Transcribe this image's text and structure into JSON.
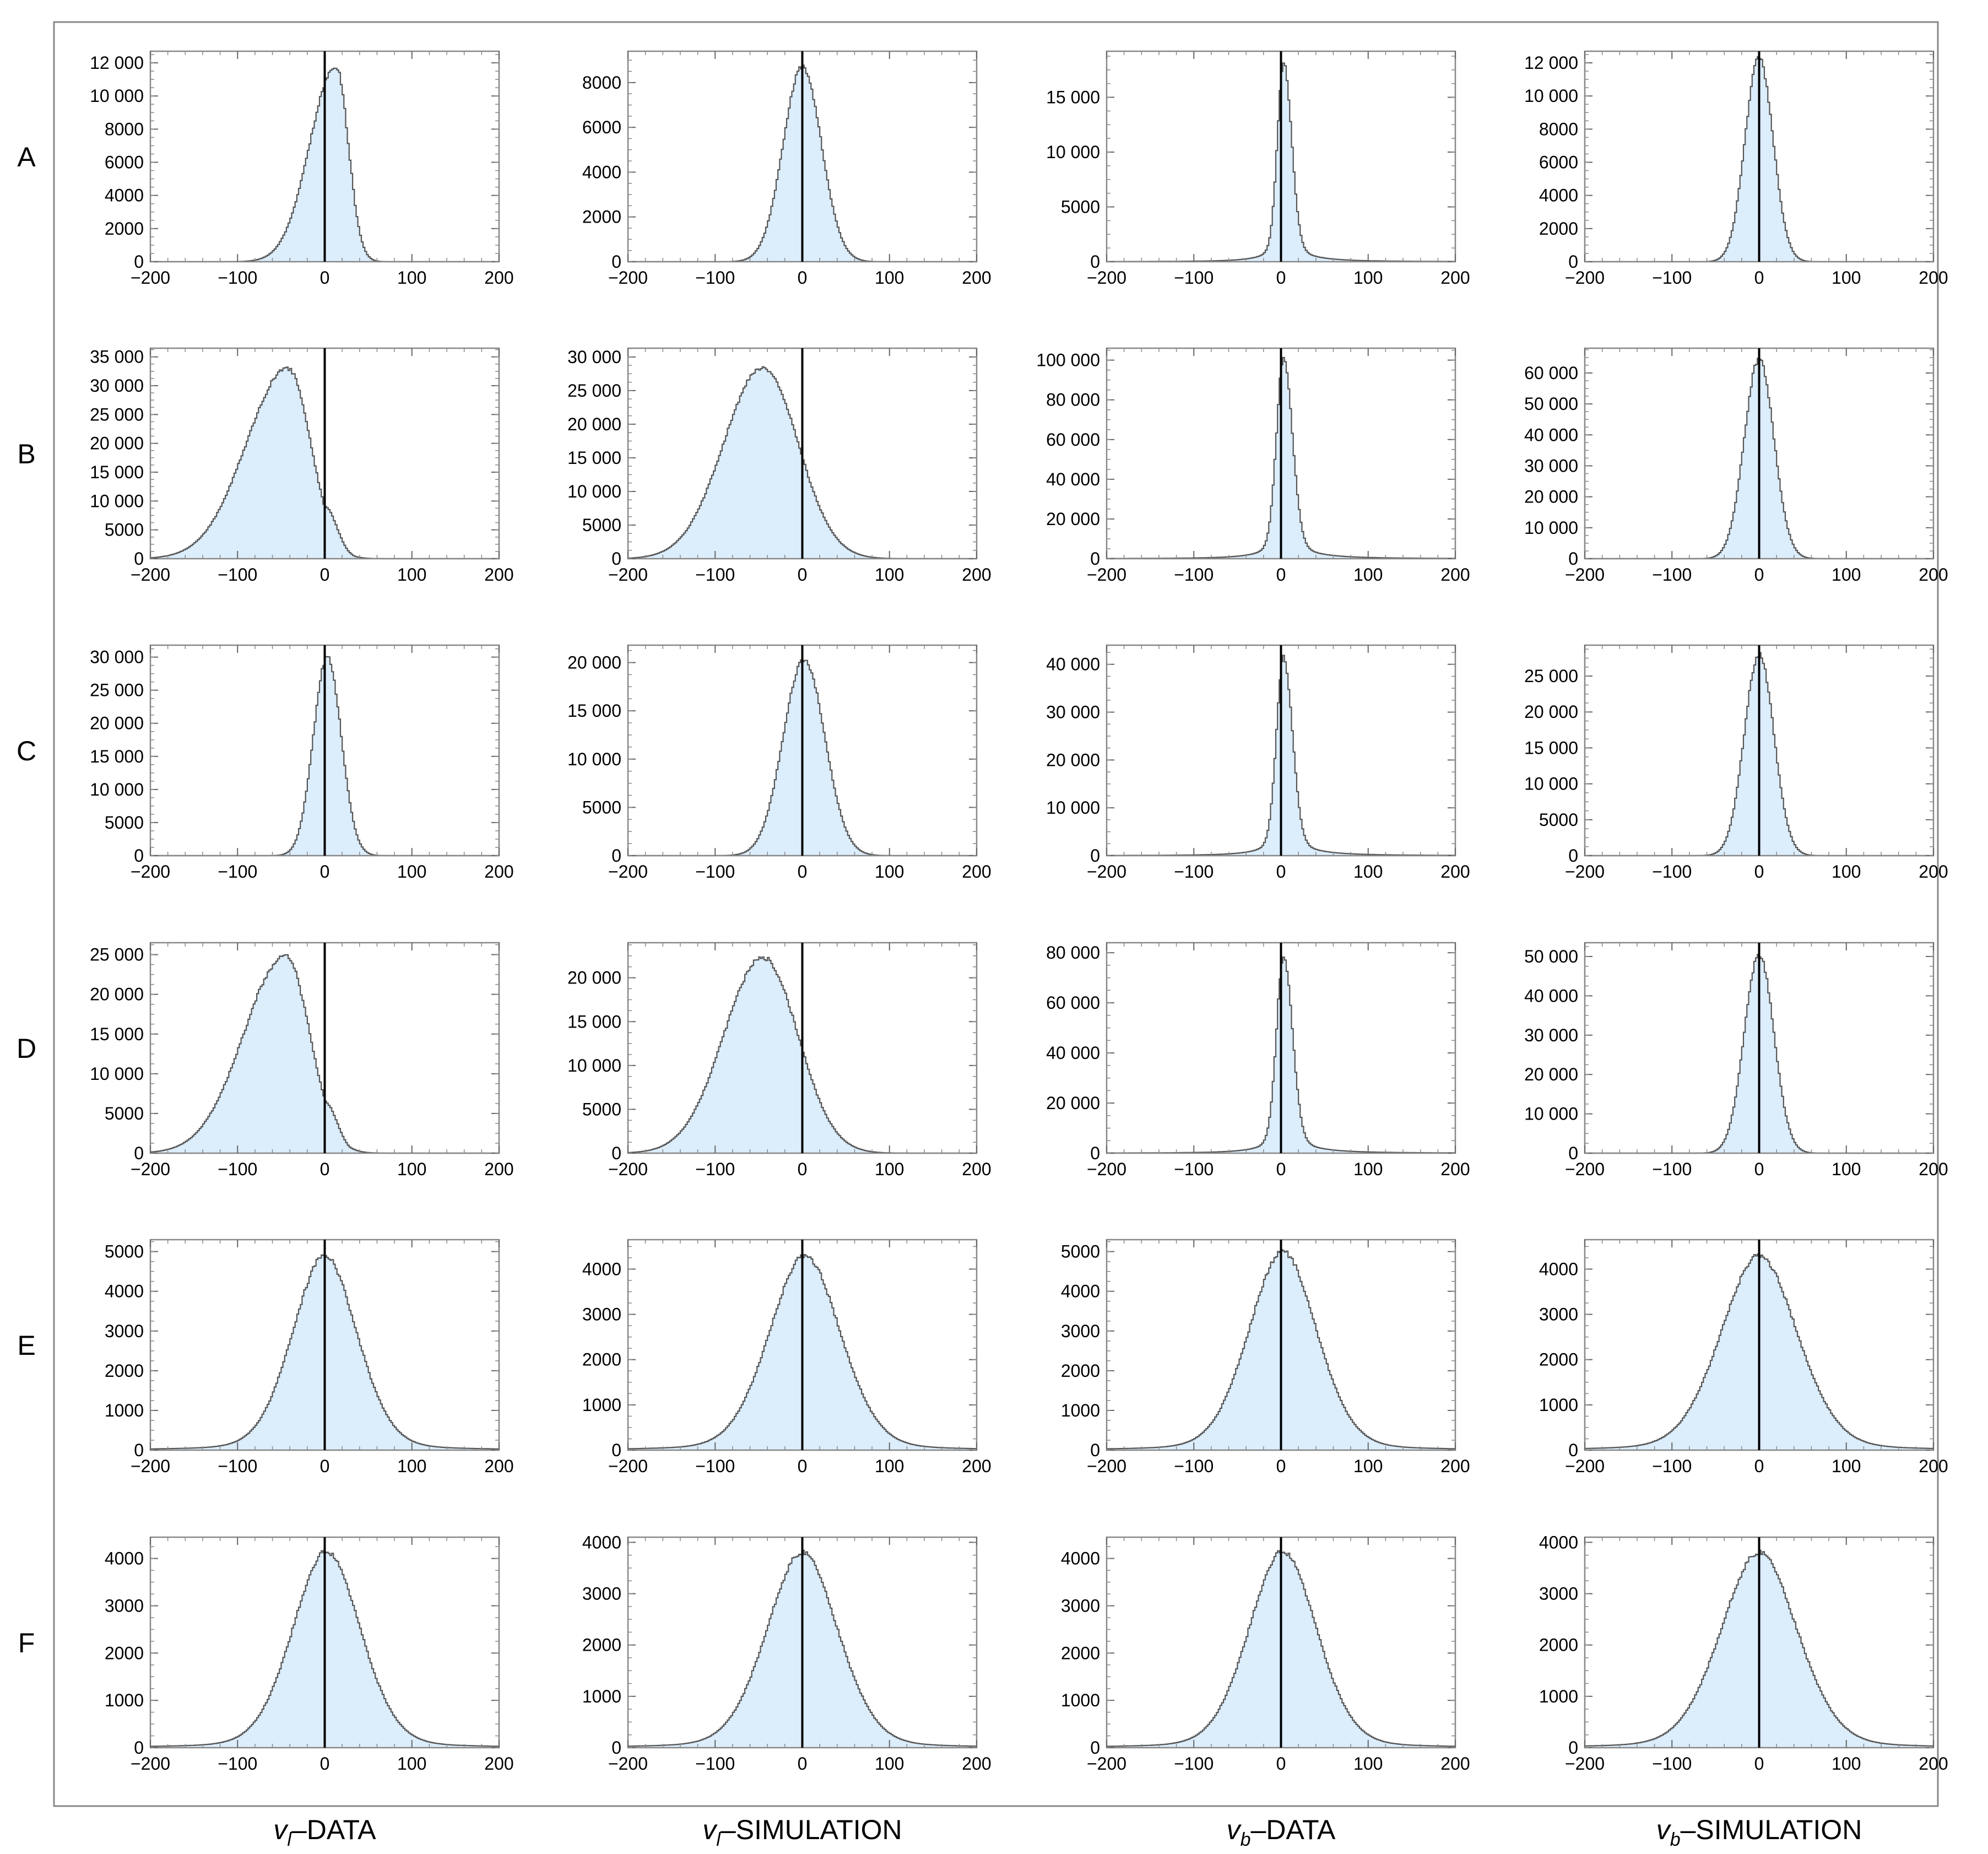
{
  "figure": {
    "row_labels": [
      "A",
      "B",
      "C",
      "D",
      "E",
      "F"
    ],
    "column_labels": [
      {
        "main": "v",
        "sub": "l",
        "rest": "–DATA"
      },
      {
        "main": "v",
        "sub": "l",
        "rest": "–SIMULATION"
      },
      {
        "main": "v",
        "sub": "b",
        "rest": "–DATA"
      },
      {
        "main": "v",
        "sub": "b",
        "rest": "–SIMULATION"
      }
    ],
    "colors": {
      "fill": "#dcedfc",
      "outline": "#555555",
      "zero_line": "#000000",
      "frame": "#888888"
    }
  },
  "chart_data": [
    {
      "type": "histogram",
      "row": "A",
      "column": "vl-DATA",
      "xlim": [
        -200,
        200
      ],
      "ylim": [
        0,
        12700
      ],
      "xticks": [
        -200,
        -100,
        0,
        100,
        200
      ],
      "yticks": [
        0,
        2000,
        4000,
        6000,
        8000,
        10000,
        12000
      ],
      "ytick_labels": [
        "0",
        "2000",
        "4000",
        "6000",
        "8000",
        "10 000",
        "12 000"
      ],
      "zero_line_x": 0,
      "series": [
        {
          "shape": "skewed-peak",
          "peak_x": 13,
          "peak_y": 11800,
          "left_width": 30,
          "right_width": 14,
          "shoulder": {
            "x": 26,
            "y": 6400,
            "width": 8
          }
        }
      ]
    },
    {
      "type": "histogram",
      "row": "A",
      "column": "vl-SIMULATION",
      "xlim": [
        -200,
        200
      ],
      "ylim": [
        0,
        9400
      ],
      "xticks": [
        -200,
        -100,
        0,
        100,
        200
      ],
      "yticks": [
        0,
        2000,
        4000,
        6000,
        8000
      ],
      "ytick_labels": [
        "0",
        "2000",
        "4000",
        "6000",
        "8000"
      ],
      "zero_line_x": 0,
      "series": [
        {
          "shape": "peak",
          "peak_x": 0,
          "peak_y": 8700,
          "left_width": 22,
          "right_width": 22
        }
      ]
    },
    {
      "type": "histogram",
      "row": "A",
      "column": "vb-DATA",
      "xlim": [
        -200,
        200
      ],
      "ylim": [
        0,
        19200
      ],
      "xticks": [
        -200,
        -100,
        0,
        100,
        200
      ],
      "yticks": [
        0,
        5000,
        10000,
        15000
      ],
      "ytick_labels": [
        "0",
        "5000",
        "10 000",
        "15 000"
      ],
      "zero_line_x": 0,
      "series": [
        {
          "shape": "sharp-peak",
          "peak_x": 3,
          "peak_y": 18200,
          "left_width": 7,
          "right_width": 9
        }
      ]
    },
    {
      "type": "histogram",
      "row": "A",
      "column": "vb-SIMULATION",
      "xlim": [
        -200,
        200
      ],
      "ylim": [
        0,
        12700
      ],
      "xticks": [
        -200,
        -100,
        0,
        100,
        200
      ],
      "yticks": [
        0,
        2000,
        4000,
        6000,
        8000,
        10000,
        12000
      ],
      "ytick_labels": [
        "0",
        "2000",
        "4000",
        "6000",
        "8000",
        "10 000",
        "12 000"
      ],
      "zero_line_x": 0,
      "series": [
        {
          "shape": "peak",
          "peak_x": 0,
          "peak_y": 12300,
          "left_width": 16,
          "right_width": 16
        }
      ]
    },
    {
      "type": "histogram",
      "row": "B",
      "column": "vl-DATA",
      "xlim": [
        -200,
        200
      ],
      "ylim": [
        0,
        36500
      ],
      "xticks": [
        -200,
        -100,
        0,
        100,
        200
      ],
      "yticks": [
        0,
        5000,
        10000,
        15000,
        20000,
        25000,
        30000,
        35000
      ],
      "ytick_labels": [
        "0",
        "5000",
        "10 000",
        "15 000",
        "20 000",
        "25 000",
        "30 000",
        "35 000"
      ],
      "zero_line_x": 0,
      "series": [
        {
          "shape": "skewed-peak",
          "peak_x": -42,
          "peak_y": 33000,
          "left_width": 48,
          "right_width": 26,
          "shoulder": {
            "x": 0,
            "y": 9000,
            "width": 14
          }
        }
      ]
    },
    {
      "type": "histogram",
      "row": "B",
      "column": "vl-SIMULATION",
      "xlim": [
        -200,
        200
      ],
      "ylim": [
        0,
        31300
      ],
      "xticks": [
        -200,
        -100,
        0,
        100,
        200
      ],
      "yticks": [
        0,
        5000,
        10000,
        15000,
        20000,
        25000,
        30000
      ],
      "ytick_labels": [
        "0",
        "5000",
        "10 000",
        "15 000",
        "20 000",
        "25 000",
        "30 000"
      ],
      "zero_line_x": 0,
      "series": [
        {
          "shape": "peak",
          "peak_x": -45,
          "peak_y": 28500,
          "left_width": 45,
          "right_width": 40
        }
      ]
    },
    {
      "type": "histogram",
      "row": "B",
      "column": "vb-DATA",
      "xlim": [
        -200,
        200
      ],
      "ylim": [
        0,
        106000
      ],
      "xticks": [
        -200,
        -100,
        0,
        100,
        200
      ],
      "yticks": [
        0,
        20000,
        40000,
        60000,
        80000,
        100000
      ],
      "ytick_labels": [
        "0",
        "20 000",
        "40 000",
        "60 000",
        "80 000",
        "100 000"
      ],
      "zero_line_x": 0,
      "series": [
        {
          "shape": "sharp-peak",
          "peak_x": 3,
          "peak_y": 101000,
          "left_width": 8,
          "right_width": 10
        }
      ]
    },
    {
      "type": "histogram",
      "row": "B",
      "column": "vb-SIMULATION",
      "xlim": [
        -200,
        200
      ],
      "ylim": [
        0,
        68000
      ],
      "xticks": [
        -200,
        -100,
        0,
        100,
        200
      ],
      "yticks": [
        0,
        10000,
        20000,
        30000,
        40000,
        50000,
        60000
      ],
      "ytick_labels": [
        "0",
        "10 000",
        "20 000",
        "30 000",
        "40 000",
        "50 000",
        "60 000"
      ],
      "zero_line_x": 0,
      "series": [
        {
          "shape": "peak",
          "peak_x": 0,
          "peak_y": 64500,
          "left_width": 17,
          "right_width": 17
        }
      ]
    },
    {
      "type": "histogram",
      "row": "C",
      "column": "vl-DATA",
      "xlim": [
        -200,
        200
      ],
      "ylim": [
        0,
        31800
      ],
      "xticks": [
        -200,
        -100,
        0,
        100,
        200
      ],
      "yticks": [
        0,
        5000,
        10000,
        15000,
        20000,
        25000,
        30000
      ],
      "ytick_labels": [
        "0",
        "5000",
        "10 000",
        "15 000",
        "20 000",
        "25 000",
        "30 000"
      ],
      "zero_line_x": 0,
      "series": [
        {
          "shape": "skewed-peak",
          "peak_x": 3,
          "peak_y": 30000,
          "left_width": 16,
          "right_width": 16
        }
      ]
    },
    {
      "type": "histogram",
      "row": "C",
      "column": "vl-SIMULATION",
      "xlim": [
        -200,
        200
      ],
      "ylim": [
        0,
        21800
      ],
      "xticks": [
        -200,
        -100,
        0,
        100,
        200
      ],
      "yticks": [
        0,
        5000,
        10000,
        15000,
        20000
      ],
      "ytick_labels": [
        "0",
        "5000",
        "10 000",
        "15 000",
        "20 000"
      ],
      "zero_line_x": 0,
      "series": [
        {
          "shape": "peak",
          "peak_x": 2,
          "peak_y": 20300,
          "left_width": 24,
          "right_width": 24
        }
      ]
    },
    {
      "type": "histogram",
      "row": "C",
      "column": "vb-DATA",
      "xlim": [
        -200,
        200
      ],
      "ylim": [
        0,
        44000
      ],
      "xticks": [
        -200,
        -100,
        0,
        100,
        200
      ],
      "yticks": [
        0,
        10000,
        20000,
        30000,
        40000
      ],
      "ytick_labels": [
        "0",
        "10 000",
        "20 000",
        "30 000",
        "40 000"
      ],
      "zero_line_x": 0,
      "series": [
        {
          "shape": "sharp-peak",
          "peak_x": 3,
          "peak_y": 41500,
          "left_width": 8,
          "right_width": 10
        }
      ]
    },
    {
      "type": "histogram",
      "row": "C",
      "column": "vb-SIMULATION",
      "xlim": [
        -200,
        200
      ],
      "ylim": [
        0,
        29300
      ],
      "xticks": [
        -200,
        -100,
        0,
        100,
        200
      ],
      "yticks": [
        0,
        5000,
        10000,
        15000,
        20000,
        25000
      ],
      "ytick_labels": [
        "0",
        "5000",
        "10 000",
        "15 000",
        "20 000",
        "25 000"
      ],
      "zero_line_x": 0,
      "series": [
        {
          "shape": "peak",
          "peak_x": 0,
          "peak_y": 28000,
          "left_width": 17,
          "right_width": 17
        }
      ]
    },
    {
      "type": "histogram",
      "row": "D",
      "column": "vl-DATA",
      "xlim": [
        -200,
        200
      ],
      "ylim": [
        0,
        26500
      ],
      "xticks": [
        -200,
        -100,
        0,
        100,
        200
      ],
      "yticks": [
        0,
        5000,
        10000,
        15000,
        20000,
        25000
      ],
      "ytick_labels": [
        "0",
        "5000",
        "10 000",
        "15 000",
        "20 000",
        "25 000"
      ],
      "zero_line_x": 0,
      "series": [
        {
          "shape": "skewed-peak",
          "peak_x": -45,
          "peak_y": 24800,
          "left_width": 48,
          "right_width": 28,
          "shoulder": {
            "x": 0,
            "y": 6500,
            "width": 14
          }
        }
      ]
    },
    {
      "type": "histogram",
      "row": "D",
      "column": "vl-SIMULATION",
      "xlim": [
        -200,
        200
      ],
      "ylim": [
        0,
        24000
      ],
      "xticks": [
        -200,
        -100,
        0,
        100,
        200
      ],
      "yticks": [
        0,
        5000,
        10000,
        15000,
        20000
      ],
      "ytick_labels": [
        "0",
        "5000",
        "10 000",
        "15 000",
        "20 000"
      ],
      "zero_line_x": 0,
      "series": [
        {
          "shape": "peak",
          "peak_x": -45,
          "peak_y": 22300,
          "left_width": 45,
          "right_width": 40
        }
      ]
    },
    {
      "type": "histogram",
      "row": "D",
      "column": "vb-DATA",
      "xlim": [
        -200,
        200
      ],
      "ylim": [
        0,
        84000
      ],
      "xticks": [
        -200,
        -100,
        0,
        100,
        200
      ],
      "yticks": [
        0,
        20000,
        40000,
        60000,
        80000
      ],
      "ytick_labels": [
        "0",
        "20 000",
        "40 000",
        "60 000",
        "80 000"
      ],
      "zero_line_x": 0,
      "series": [
        {
          "shape": "sharp-peak",
          "peak_x": 3,
          "peak_y": 79000,
          "left_width": 8,
          "right_width": 10
        }
      ]
    },
    {
      "type": "histogram",
      "row": "D",
      "column": "vb-SIMULATION",
      "xlim": [
        -200,
        200
      ],
      "ylim": [
        0,
        53500
      ],
      "xticks": [
        -200,
        -100,
        0,
        100,
        200
      ],
      "yticks": [
        0,
        10000,
        20000,
        30000,
        40000,
        50000
      ],
      "ytick_labels": [
        "0",
        "10 000",
        "20 000",
        "30 000",
        "40 000",
        "50 000"
      ],
      "zero_line_x": 0,
      "series": [
        {
          "shape": "peak",
          "peak_x": 0,
          "peak_y": 50500,
          "left_width": 17,
          "right_width": 17
        }
      ]
    },
    {
      "type": "histogram",
      "row": "E",
      "column": "vl-DATA",
      "xlim": [
        -200,
        200
      ],
      "ylim": [
        0,
        5300
      ],
      "xticks": [
        -200,
        -100,
        0,
        100,
        200
      ],
      "yticks": [
        0,
        1000,
        2000,
        3000,
        4000,
        5000
      ],
      "ytick_labels": [
        "0",
        "1000",
        "2000",
        "3000",
        "4000",
        "5000"
      ],
      "zero_line_x": 0,
      "series": [
        {
          "shape": "wide-peak",
          "peak_x": 0,
          "peak_y": 4900,
          "left_width": 38,
          "right_width": 38,
          "tail": 110
        }
      ]
    },
    {
      "type": "histogram",
      "row": "E",
      "column": "vl-SIMULATION",
      "xlim": [
        -200,
        200
      ],
      "ylim": [
        0,
        4650
      ],
      "xticks": [
        -200,
        -100,
        0,
        100,
        200
      ],
      "yticks": [
        0,
        1000,
        2000,
        3000,
        4000
      ],
      "ytick_labels": [
        "0",
        "1000",
        "2000",
        "3000",
        "4000"
      ],
      "zero_line_x": 0,
      "series": [
        {
          "shape": "wide-peak",
          "peak_x": 3,
          "peak_y": 4300,
          "left_width": 42,
          "right_width": 42,
          "tail": 100
        }
      ]
    },
    {
      "type": "histogram",
      "row": "E",
      "column": "vb-DATA",
      "xlim": [
        -200,
        200
      ],
      "ylim": [
        0,
        5300
      ],
      "xticks": [
        -200,
        -100,
        0,
        100,
        200
      ],
      "yticks": [
        0,
        1000,
        2000,
        3000,
        4000,
        5000
      ],
      "ytick_labels": [
        "0",
        "1000",
        "2000",
        "3000",
        "4000",
        "5000"
      ],
      "zero_line_x": 0,
      "series": [
        {
          "shape": "wide-peak",
          "peak_x": 2,
          "peak_y": 5000,
          "left_width": 40,
          "right_width": 40,
          "tail": 100
        }
      ]
    },
    {
      "type": "histogram",
      "row": "E",
      "column": "vb-SIMULATION",
      "xlim": [
        -200,
        200
      ],
      "ylim": [
        0,
        4650
      ],
      "xticks": [
        -200,
        -100,
        0,
        100,
        200
      ],
      "yticks": [
        0,
        1000,
        2000,
        3000,
        4000
      ],
      "ytick_labels": [
        "0",
        "1000",
        "2000",
        "3000",
        "4000"
      ],
      "zero_line_x": 0,
      "series": [
        {
          "shape": "wide-peak",
          "peak_x": 0,
          "peak_y": 4300,
          "left_width": 45,
          "right_width": 45,
          "tail": 100
        }
      ]
    },
    {
      "type": "histogram",
      "row": "F",
      "column": "vl-DATA",
      "xlim": [
        -200,
        200
      ],
      "ylim": [
        0,
        4450
      ],
      "xticks": [
        -200,
        -100,
        0,
        100,
        200
      ],
      "yticks": [
        0,
        1000,
        2000,
        3000,
        4000
      ],
      "ytick_labels": [
        "0",
        "1000",
        "2000",
        "3000",
        "4000"
      ],
      "zero_line_x": 0,
      "series": [
        {
          "shape": "wide-peak",
          "peak_x": 2,
          "peak_y": 4150,
          "left_width": 40,
          "right_width": 40,
          "tail": 100
        }
      ]
    },
    {
      "type": "histogram",
      "row": "F",
      "column": "vl-SIMULATION",
      "xlim": [
        -200,
        200
      ],
      "ylim": [
        0,
        4100
      ],
      "xticks": [
        -200,
        -100,
        0,
        100,
        200
      ],
      "yticks": [
        0,
        1000,
        2000,
        3000,
        4000
      ],
      "ytick_labels": [
        "0",
        "1000",
        "2000",
        "3000",
        "4000"
      ],
      "zero_line_x": 0,
      "series": [
        {
          "shape": "wide-peak",
          "peak_x": 0,
          "peak_y": 3800,
          "left_width": 42,
          "right_width": 42,
          "tail": 100
        }
      ]
    },
    {
      "type": "histogram",
      "row": "F",
      "column": "vb-DATA",
      "xlim": [
        -200,
        200
      ],
      "ylim": [
        0,
        4450
      ],
      "xticks": [
        -200,
        -100,
        0,
        100,
        200
      ],
      "yticks": [
        0,
        1000,
        2000,
        3000,
        4000
      ],
      "ytick_labels": [
        "0",
        "1000",
        "2000",
        "3000",
        "4000"
      ],
      "zero_line_x": 0,
      "series": [
        {
          "shape": "wide-peak",
          "peak_x": 2,
          "peak_y": 4150,
          "left_width": 40,
          "right_width": 40,
          "tail": 100
        }
      ]
    },
    {
      "type": "histogram",
      "row": "F",
      "column": "vb-SIMULATION",
      "xlim": [
        -200,
        200
      ],
      "ylim": [
        0,
        4100
      ],
      "xticks": [
        -200,
        -100,
        0,
        100,
        200
      ],
      "yticks": [
        0,
        1000,
        2000,
        3000,
        4000
      ],
      "ytick_labels": [
        "0",
        "1000",
        "2000",
        "3000",
        "4000"
      ],
      "zero_line_x": 0,
      "series": [
        {
          "shape": "wide-peak",
          "peak_x": 0,
          "peak_y": 3800,
          "left_width": 45,
          "right_width": 45,
          "tail": 100
        }
      ]
    }
  ]
}
